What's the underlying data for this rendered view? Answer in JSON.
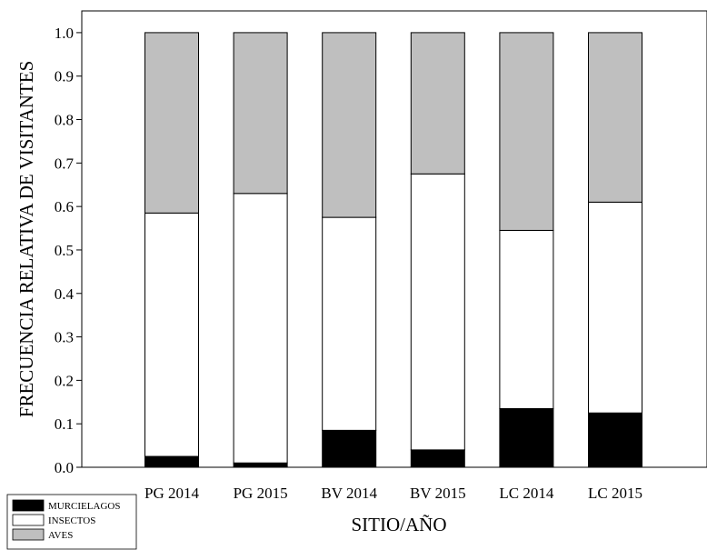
{
  "chart_data": {
    "type": "bar",
    "stacked": true,
    "categories": [
      "PG 2014",
      "PG 2015",
      "BV 2014",
      "BV 2015",
      "LC 2014",
      "LC 2015"
    ],
    "series": [
      {
        "name": "MURCIELAGOS",
        "color": "#000000",
        "values": [
          0.025,
          0.01,
          0.085,
          0.04,
          0.135,
          0.125
        ]
      },
      {
        "name": "INSECTOS",
        "color": "#ffffff",
        "values": [
          0.56,
          0.62,
          0.49,
          0.635,
          0.41,
          0.485
        ]
      },
      {
        "name": "AVES",
        "color": "#bfbfbf",
        "values": [
          0.415,
          0.37,
          0.425,
          0.325,
          0.455,
          0.39
        ]
      }
    ],
    "xlabel": "SITIO/AÑO",
    "ylabel": "FRECUENCIA RELATIVA DE VISITANTES",
    "ylim": [
      0,
      1.05
    ],
    "yticks": [
      "0.0",
      "0.1",
      "0.2",
      "0.3",
      "0.4",
      "0.5",
      "0.6",
      "0.7",
      "0.8",
      "0.9",
      "1.0"
    ],
    "grid": false,
    "legend_position": "bottom-left"
  }
}
